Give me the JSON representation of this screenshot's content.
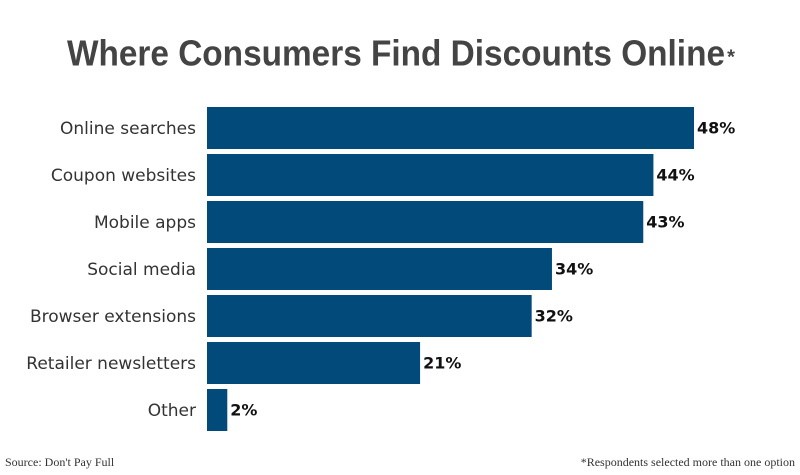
{
  "chart_data": {
    "type": "hbar",
    "title": "Where Consumers Find Discounts Online",
    "title_mark": "*",
    "categories": [
      "Online searches",
      "Coupon websites",
      "Mobile apps",
      "Social media",
      "Browser extensions",
      "Retailer newsletters",
      "Other"
    ],
    "values": [
      48,
      44,
      43,
      34,
      32,
      21,
      2
    ],
    "value_labels": [
      "48%",
      "44%",
      "43%",
      "34%",
      "32%",
      "21%",
      "2%"
    ],
    "color": "#024a79",
    "source": "Source: Don't Pay Full",
    "footnote": "*Respondents selected more than one option"
  }
}
